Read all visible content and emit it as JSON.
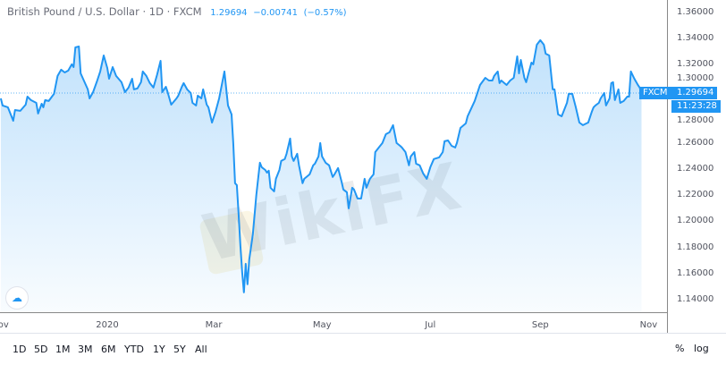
{
  "header": {
    "symbol": "British Pound / U.S. Dollar · 1D · FXCM",
    "last": "1.29694",
    "change": "−0.00741",
    "change_pct": "(−0.57%)"
  },
  "price_tag": {
    "source": "FXCM",
    "price": "1.29694",
    "countdown": "11:23:28"
  },
  "watermark": "WikiFX",
  "toolbar": {
    "ranges": [
      "1D",
      "5D",
      "1M",
      "3M",
      "6M",
      "YTD",
      "1Y",
      "5Y",
      "All"
    ],
    "percent": "%",
    "log": "log"
  },
  "colors": {
    "line": "#2196f3",
    "fill": "#cfe6fb",
    "tag": "#2196f3"
  },
  "chart_data": {
    "type": "area",
    "title": "British Pound / U.S. Dollar · 1D · FXCM",
    "ylim": [
      1.13,
      1.37
    ],
    "y_ticks": [
      "1.36000",
      "1.34000",
      "1.32000",
      "1.30000",
      "1.28000",
      "1.26000",
      "1.24000",
      "1.22000",
      "1.20000",
      "1.18000",
      "1.16000",
      "1.14000"
    ],
    "x_ticks": [
      {
        "label": "Nov",
        "date": "2019-11-01"
      },
      {
        "label": "2020",
        "date": "2020-01-01"
      },
      {
        "label": "Mar",
        "date": "2020-03-01"
      },
      {
        "label": "May",
        "date": "2020-05-01"
      },
      {
        "label": "Jul",
        "date": "2020-07-01"
      },
      {
        "label": "Sep",
        "date": "2020-09-01"
      },
      {
        "label": "Nov",
        "date": "2020-11-01"
      }
    ],
    "last_price_line": 1.29694,
    "grid": false,
    "points": [
      [
        "2019-11-02",
        1.2942
      ],
      [
        "2019-11-03",
        1.2888
      ],
      [
        "2019-11-06",
        1.2874
      ],
      [
        "2019-11-09",
        1.2771
      ],
      [
        "2019-11-10",
        1.2853
      ],
      [
        "2019-11-13",
        1.2847
      ],
      [
        "2019-11-16",
        1.2894
      ],
      [
        "2019-11-17",
        1.2956
      ],
      [
        "2019-11-19",
        1.2929
      ],
      [
        "2019-11-22",
        1.2908
      ],
      [
        "2019-11-23",
        1.2826
      ],
      [
        "2019-11-25",
        1.2901
      ],
      [
        "2019-11-26",
        1.2874
      ],
      [
        "2019-11-27",
        1.2929
      ],
      [
        "2019-11-29",
        1.2922
      ],
      [
        "2019-12-02",
        1.2977
      ],
      [
        "2019-12-04",
        1.3114
      ],
      [
        "2019-12-06",
        1.3162
      ],
      [
        "2019-12-08",
        1.3141
      ],
      [
        "2019-12-10",
        1.3155
      ],
      [
        "2019-12-12",
        1.3203
      ],
      [
        "2019-12-13",
        1.3182
      ],
      [
        "2019-12-14",
        1.3333
      ],
      [
        "2019-12-16",
        1.334
      ],
      [
        "2019-12-17",
        1.3134
      ],
      [
        "2019-12-21",
        1.3011
      ],
      [
        "2019-12-22",
        1.2942
      ],
      [
        "2019-12-24",
        1.299
      ],
      [
        "2019-12-26",
        1.3066
      ],
      [
        "2019-12-28",
        1.3148
      ],
      [
        "2019-12-30",
        1.3271
      ],
      [
        "2020-01-01",
        1.3175
      ],
      [
        "2020-01-02",
        1.3093
      ],
      [
        "2020-01-04",
        1.3182
      ],
      [
        "2020-01-06",
        1.3114
      ],
      [
        "2020-01-09",
        1.3066
      ],
      [
        "2020-01-11",
        1.299
      ],
      [
        "2020-01-13",
        1.3025
      ],
      [
        "2020-01-15",
        1.3093
      ],
      [
        "2020-01-16",
        1.3011
      ],
      [
        "2020-01-18",
        1.3018
      ],
      [
        "2020-01-20",
        1.3066
      ],
      [
        "2020-01-21",
        1.3148
      ],
      [
        "2020-01-23",
        1.3114
      ],
      [
        "2020-01-25",
        1.3059
      ],
      [
        "2020-01-27",
        1.3025
      ],
      [
        "2020-01-29",
        1.3121
      ],
      [
        "2020-01-31",
        1.323
      ],
      [
        "2020-02-01",
        1.299
      ],
      [
        "2020-02-03",
        1.3031
      ],
      [
        "2020-02-04",
        1.299
      ],
      [
        "2020-02-06",
        1.2894
      ],
      [
        "2020-02-09",
        1.2942
      ],
      [
        "2020-02-10",
        1.2963
      ],
      [
        "2020-02-12",
        1.3031
      ],
      [
        "2020-02-13",
        1.3059
      ],
      [
        "2020-02-15",
        1.3011
      ],
      [
        "2020-02-17",
        1.2984
      ],
      [
        "2020-02-18",
        1.2908
      ],
      [
        "2020-02-20",
        1.2888
      ],
      [
        "2020-02-21",
        1.2963
      ],
      [
        "2020-02-23",
        1.2942
      ],
      [
        "2020-02-24",
        1.3011
      ],
      [
        "2020-02-26",
        1.2894
      ],
      [
        "2020-02-27",
        1.2874
      ],
      [
        "2020-02-29",
        1.2757
      ],
      [
        "2020-03-02",
        1.284
      ],
      [
        "2020-03-04",
        1.2942
      ],
      [
        "2020-03-07",
        1.3148
      ],
      [
        "2020-03-09",
        1.2888
      ],
      [
        "2020-03-11",
        1.2819
      ],
      [
        "2020-03-12",
        1.26
      ],
      [
        "2020-03-13",
        1.2292
      ],
      [
        "2020-03-14",
        1.2278
      ],
      [
        "2020-03-15",
        1.2052
      ],
      [
        "2020-03-16",
        1.1812
      ],
      [
        "2020-03-17",
        1.1607
      ],
      [
        "2020-03-18",
        1.1456
      ],
      [
        "2020-03-19",
        1.1675
      ],
      [
        "2020-03-20",
        1.1518
      ],
      [
        "2020-03-21",
        1.1709
      ],
      [
        "2020-03-23",
        1.1901
      ],
      [
        "2020-03-25",
        1.2203
      ],
      [
        "2020-03-27",
        1.2449
      ],
      [
        "2020-03-28",
        1.2415
      ],
      [
        "2020-03-30",
        1.2394
      ],
      [
        "2020-03-31",
        1.2374
      ],
      [
        "2020-04-01",
        1.2388
      ],
      [
        "2020-04-02",
        1.2257
      ],
      [
        "2020-04-04",
        1.223
      ],
      [
        "2020-04-05",
        1.2326
      ],
      [
        "2020-04-07",
        1.2394
      ],
      [
        "2020-04-08",
        1.2463
      ],
      [
        "2020-04-10",
        1.2477
      ],
      [
        "2020-04-11",
        1.2518
      ],
      [
        "2020-04-13",
        1.2634
      ],
      [
        "2020-04-14",
        1.2497
      ],
      [
        "2020-04-15",
        1.2463
      ],
      [
        "2020-04-17",
        1.2518
      ],
      [
        "2020-04-18",
        1.2429
      ],
      [
        "2020-04-20",
        1.2292
      ],
      [
        "2020-04-21",
        1.2326
      ],
      [
        "2020-04-24",
        1.236
      ],
      [
        "2020-04-26",
        1.2429
      ],
      [
        "2020-04-27",
        1.2442
      ],
      [
        "2020-04-29",
        1.2497
      ],
      [
        "2020-04-30",
        1.26
      ],
      [
        "2020-05-01",
        1.2497
      ],
      [
        "2020-05-03",
        1.2449
      ],
      [
        "2020-05-05",
        1.2429
      ],
      [
        "2020-05-07",
        1.234
      ],
      [
        "2020-05-08",
        1.236
      ],
      [
        "2020-05-10",
        1.2408
      ],
      [
        "2020-05-12",
        1.2305
      ],
      [
        "2020-05-13",
        1.2244
      ],
      [
        "2020-05-15",
        1.2223
      ],
      [
        "2020-05-16",
        1.21
      ],
      [
        "2020-05-18",
        1.2257
      ],
      [
        "2020-05-19",
        1.2244
      ],
      [
        "2020-05-21",
        1.2175
      ],
      [
        "2020-05-23",
        1.2175
      ],
      [
        "2020-05-25",
        1.2326
      ],
      [
        "2020-05-26",
        1.2257
      ],
      [
        "2020-05-28",
        1.2326
      ],
      [
        "2020-05-30",
        1.236
      ],
      [
        "2020-05-31",
        1.2531
      ],
      [
        "2020-06-02",
        1.2566
      ],
      [
        "2020-06-04",
        1.26
      ],
      [
        "2020-06-06",
        1.2668
      ],
      [
        "2020-06-08",
        1.2682
      ],
      [
        "2020-06-10",
        1.2737
      ],
      [
        "2020-06-12",
        1.26
      ],
      [
        "2020-06-14",
        1.2579
      ],
      [
        "2020-06-15",
        1.2566
      ],
      [
        "2020-06-17",
        1.2531
      ],
      [
        "2020-06-19",
        1.2429
      ],
      [
        "2020-06-20",
        1.2497
      ],
      [
        "2020-06-22",
        1.2531
      ],
      [
        "2020-06-23",
        1.2442
      ],
      [
        "2020-06-25",
        1.2429
      ],
      [
        "2020-06-27",
        1.2367
      ],
      [
        "2020-06-29",
        1.2326
      ],
      [
        "2020-07-01",
        1.2415
      ],
      [
        "2020-07-03",
        1.2477
      ],
      [
        "2020-07-06",
        1.249
      ],
      [
        "2020-07-08",
        1.2531
      ],
      [
        "2020-07-09",
        1.2614
      ],
      [
        "2020-07-11",
        1.262
      ],
      [
        "2020-07-13",
        1.2579
      ],
      [
        "2020-07-15",
        1.2566
      ],
      [
        "2020-07-16",
        1.26
      ],
      [
        "2020-07-18",
        1.2716
      ],
      [
        "2020-07-21",
        1.2751
      ],
      [
        "2020-07-22",
        1.2805
      ],
      [
        "2020-07-26",
        1.2922
      ],
      [
        "2020-07-29",
        1.3045
      ],
      [
        "2020-08-01",
        1.31
      ],
      [
        "2020-08-03",
        1.3079
      ],
      [
        "2020-08-05",
        1.3079
      ],
      [
        "2020-08-06",
        1.3114
      ],
      [
        "2020-08-08",
        1.3148
      ],
      [
        "2020-08-09",
        1.3059
      ],
      [
        "2020-08-10",
        1.3079
      ],
      [
        "2020-08-13",
        1.3045
      ],
      [
        "2020-08-15",
        1.3079
      ],
      [
        "2020-08-17",
        1.31
      ],
      [
        "2020-08-19",
        1.3264
      ],
      [
        "2020-08-20",
        1.3134
      ],
      [
        "2020-08-21",
        1.3237
      ],
      [
        "2020-08-23",
        1.31
      ],
      [
        "2020-08-24",
        1.3066
      ],
      [
        "2020-08-27",
        1.3216
      ],
      [
        "2020-08-28",
        1.3203
      ],
      [
        "2020-08-30",
        1.3353
      ],
      [
        "2020-09-01",
        1.3388
      ],
      [
        "2020-09-03",
        1.3353
      ],
      [
        "2020-09-04",
        1.3285
      ],
      [
        "2020-09-06",
        1.3271
      ],
      [
        "2020-09-08",
        1.3011
      ],
      [
        "2020-09-09",
        1.3011
      ],
      [
        "2020-09-11",
        1.2819
      ],
      [
        "2020-09-13",
        1.2805
      ],
      [
        "2020-09-16",
        1.2908
      ],
      [
        "2020-09-17",
        1.2977
      ],
      [
        "2020-09-19",
        1.2977
      ],
      [
        "2020-09-21",
        1.2874
      ],
      [
        "2020-09-23",
        1.2757
      ],
      [
        "2020-09-25",
        1.2737
      ],
      [
        "2020-09-27",
        1.2751
      ],
      [
        "2020-09-28",
        1.2757
      ],
      [
        "2020-09-30",
        1.284
      ],
      [
        "2020-10-01",
        1.2874
      ],
      [
        "2020-10-02",
        1.2888
      ],
      [
        "2020-10-04",
        1.2908
      ],
      [
        "2020-10-05",
        1.2942
      ],
      [
        "2020-10-07",
        1.2984
      ],
      [
        "2020-10-08",
        1.2888
      ],
      [
        "2020-10-10",
        1.2942
      ],
      [
        "2020-10-11",
        1.3059
      ],
      [
        "2020-10-12",
        1.3066
      ],
      [
        "2020-10-13",
        1.2929
      ],
      [
        "2020-10-15",
        1.3011
      ],
      [
        "2020-10-16",
        1.2908
      ],
      [
        "2020-10-18",
        1.2922
      ],
      [
        "2020-10-20",
        1.2956
      ],
      [
        "2020-10-21",
        1.2956
      ],
      [
        "2020-10-22",
        1.3148
      ],
      [
        "2020-10-24",
        1.3093
      ],
      [
        "2020-10-26",
        1.3045
      ],
      [
        "2020-10-27",
        1.3025
      ],
      [
        "2020-10-28",
        1.29694
      ]
    ]
  }
}
